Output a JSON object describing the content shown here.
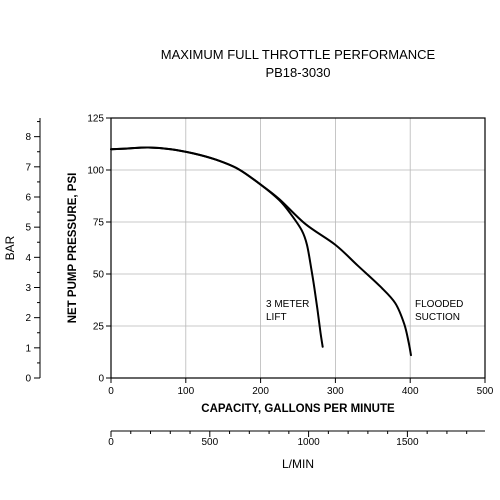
{
  "chart_data": {
    "type": "line",
    "title": "MAXIMUM FULL THROTTLE PERFORMANCE",
    "subtitle": "PB18-3030",
    "xlabel": "CAPACITY, GALLONS PER MINUTE",
    "ylabel": "NET PUMP PRESSURE, PSI",
    "xlim": [
      0,
      500
    ],
    "ylim": [
      0,
      125
    ],
    "x_ticks": [
      "0",
      "100",
      "200",
      "300",
      "400",
      "500"
    ],
    "y_ticks": [
      "0",
      "25",
      "50",
      "75",
      "100",
      "125"
    ],
    "grid": true,
    "secondary_y": {
      "label": "BAR",
      "ticks": [
        "0",
        "1",
        "2",
        "3",
        "4",
        "5",
        "6",
        "7",
        "8"
      ]
    },
    "secondary_x": {
      "label": "L/MIN",
      "ticks": [
        "0",
        "500",
        "1000",
        "1500"
      ]
    },
    "series": [
      {
        "name": "3 METER LIFT",
        "label_lines": [
          "3 METER",
          "LIFT"
        ],
        "x": [
          0,
          20,
          50,
          80,
          110,
          140,
          170,
          200,
          225,
          240,
          255,
          262,
          268,
          272,
          276,
          280,
          283
        ],
        "y": [
          110,
          110.3,
          110.8,
          110,
          108,
          105,
          100.5,
          93,
          85.5,
          79,
          71,
          64,
          52,
          43,
          33,
          22,
          15
        ]
      },
      {
        "name": "FLOODED SUCTION",
        "label_lines": [
          "FLOODED",
          "SUCTION"
        ],
        "x": [
          0,
          20,
          50,
          80,
          110,
          140,
          170,
          200,
          225,
          260,
          300,
          330,
          360,
          380,
          392,
          398,
          401
        ],
        "y": [
          110,
          110.3,
          110.8,
          110,
          108,
          105,
          100.5,
          93,
          86,
          74,
          64,
          54,
          44,
          36,
          26,
          17,
          11
        ]
      }
    ]
  }
}
